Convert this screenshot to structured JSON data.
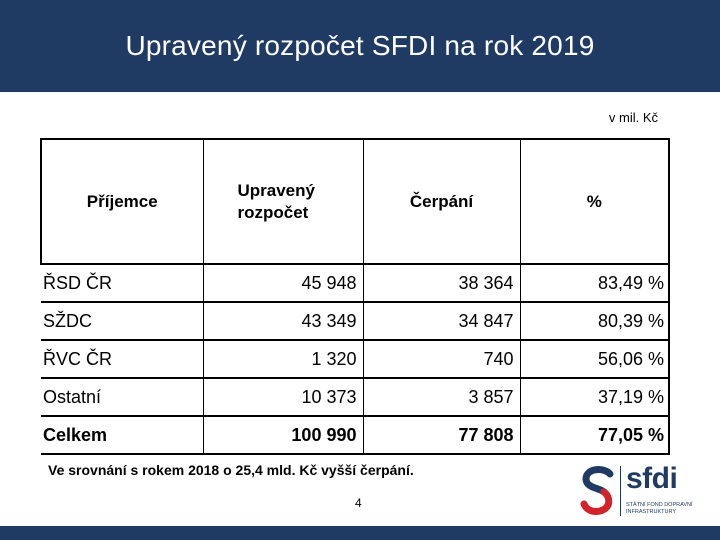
{
  "header": {
    "title": "Upravený rozpočet SFDI na rok 2019"
  },
  "unit_label": "v mil. Kč",
  "table": {
    "columns": {
      "recipient": "Příjemce",
      "budget": "Upravený rozpočet",
      "drawdown": "Čerpání",
      "percent": "%"
    },
    "rows": [
      {
        "name": "ŘSD ČR",
        "budget": "45 948",
        "drawdown": "38 364",
        "percent": "83,49 %"
      },
      {
        "name": "SŽDC",
        "budget": "43 349",
        "drawdown": "34 847",
        "percent": "80,39 %"
      },
      {
        "name": "ŘVC ČR",
        "budget": "1 320",
        "drawdown": "740",
        "percent": "56,06 %"
      },
      {
        "name": "Ostatní",
        "budget": "10 373",
        "drawdown": "3 857",
        "percent": "37,19 %"
      },
      {
        "name": "Celkem",
        "budget": "100 990",
        "drawdown": "77 808",
        "percent": "77,05 %"
      }
    ]
  },
  "note": "Ve srovnání s rokem 2018 o 25,4 mld. Kč vyšší čerpání.",
  "page_number": "4",
  "logo": {
    "name": "sfdi",
    "tagline": "STÁTNÍ FOND DOPRAVNÍ INFRASTRUKTURY",
    "icon": "sfdi-s-logo-icon",
    "colors": {
      "navy": "#1f3b64",
      "red": "#d2232a",
      "blue": "#1f3b64"
    }
  },
  "theme": {
    "header_bg": "#1f3b64",
    "footer_bg": "#1f3b64"
  }
}
